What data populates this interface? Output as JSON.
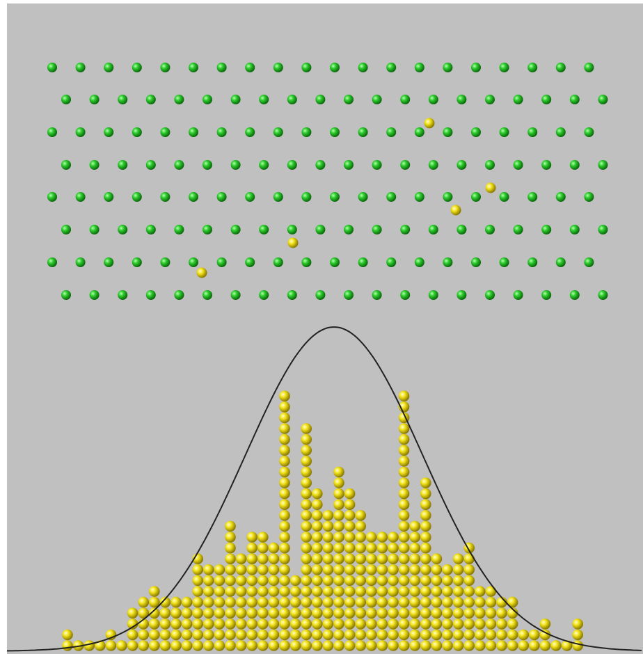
{
  "columns": [
    2,
    1,
    1,
    1,
    2,
    1,
    4,
    5,
    6,
    5,
    5,
    5,
    9,
    8,
    8,
    12,
    9,
    11,
    11,
    10,
    24,
    7,
    21,
    15,
    13,
    17,
    15,
    13,
    11,
    11,
    11,
    24,
    12,
    16,
    9,
    8,
    9,
    10,
    6,
    6,
    5,
    5,
    2,
    2,
    3,
    1,
    1,
    3
  ]
}
